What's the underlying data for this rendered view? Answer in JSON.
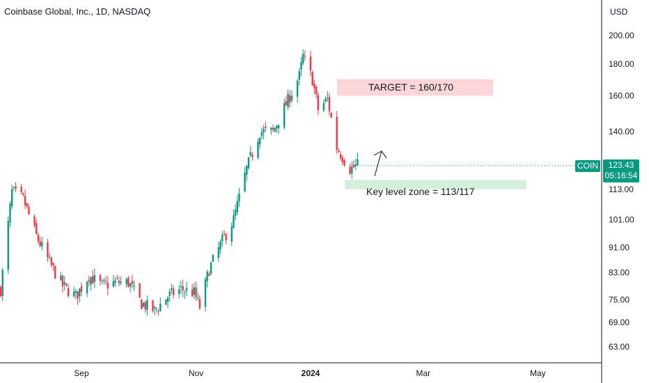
{
  "header": {
    "title": "Coinbase Global, Inc., 1D, NASDAQ"
  },
  "currency": "USD",
  "ticker": "COIN",
  "last_price": "123.43",
  "countdown": "05:16:54",
  "colors": {
    "up": "#089981",
    "down": "#f23645",
    "target_zone": "#fbd5d8",
    "support_zone": "#d6efda"
  },
  "annotations": {
    "target": "TARGET = 160/170",
    "support": "Key level zone = 113/117"
  },
  "chart_data": {
    "type": "candlestick",
    "title": "Coinbase Global, Inc., 1D, NASDAQ",
    "y_scale": "log",
    "y_ticks": [
      "200.00",
      "180.00",
      "160.00",
      "140.00",
      "113.00",
      "101.00",
      "91.00",
      "83.00",
      "75.00",
      "69.00",
      "63.00"
    ],
    "x_ticks": [
      "Sep",
      "Nov",
      "2024",
      "Mar",
      "May"
    ],
    "zones": [
      {
        "label": "TARGET = 160/170",
        "low": 160,
        "high": 170
      },
      {
        "label": "Key level zone = 113/117",
        "low": 113,
        "high": 117
      }
    ],
    "last_price": 123.43,
    "close_path": [
      [
        "2023-07-20",
        78
      ],
      [
        "2023-07-26",
        112
      ],
      [
        "2023-08-01",
        109
      ],
      [
        "2023-08-08",
        95
      ],
      [
        "2023-08-15",
        86
      ],
      [
        "2023-08-22",
        79
      ],
      [
        "2023-08-29",
        76
      ],
      [
        "2023-09-05",
        82
      ],
      [
        "2023-09-12",
        79
      ],
      [
        "2023-09-19",
        80
      ],
      [
        "2023-09-26",
        80
      ],
      [
        "2023-10-03",
        74
      ],
      [
        "2023-10-10",
        72
      ],
      [
        "2023-10-17",
        76
      ],
      [
        "2023-10-24",
        78
      ],
      [
        "2023-10-31",
        77
      ],
      [
        "2023-11-03",
        73
      ],
      [
        "2023-11-08",
        84
      ],
      [
        "2023-11-14",
        92
      ],
      [
        "2023-11-21",
        101
      ],
      [
        "2023-11-28",
        122
      ],
      [
        "2023-12-05",
        140
      ],
      [
        "2023-12-12",
        140
      ],
      [
        "2023-12-19",
        155
      ],
      [
        "2023-12-26",
        172
      ],
      [
        "2023-12-28",
        185
      ],
      [
        "2024-01-02",
        170
      ],
      [
        "2024-01-05",
        152
      ],
      [
        "2024-01-10",
        158
      ],
      [
        "2024-01-15",
        132
      ],
      [
        "2024-01-22",
        122
      ],
      [
        "2024-01-26",
        123.43
      ]
    ]
  }
}
